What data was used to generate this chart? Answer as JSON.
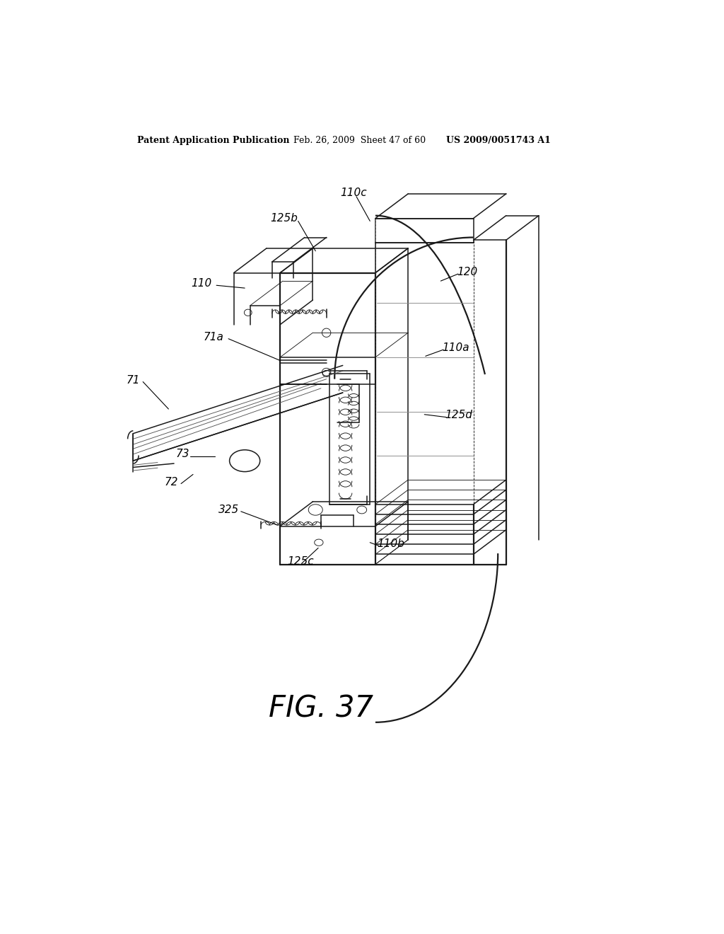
{
  "bg_color": "#ffffff",
  "header_left": "Patent Application Publication",
  "header_mid": "Feb. 26, 2009  Sheet 47 of 60",
  "header_right": "US 2009/0051743 A1",
  "fig_label": "FIG. 37",
  "line_color": "#1a1a1a",
  "lw": 1.1,
  "lw_thick": 1.6,
  "lw_thin": 0.65
}
